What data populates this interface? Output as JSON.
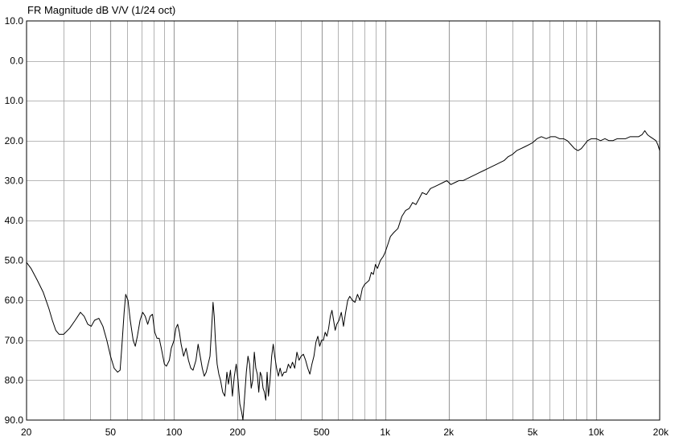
{
  "chart_data": {
    "type": "line",
    "title": "FR Magnitude dB V/V (1/24 oct)",
    "xscale": "log",
    "xlim": [
      20,
      20000
    ],
    "ylim": [
      90,
      -10
    ],
    "y_axis_inverted": true,
    "grid": true,
    "x_ticks": [
      {
        "value": 20,
        "label": "20"
      },
      {
        "value": 50,
        "label": "50"
      },
      {
        "value": 100,
        "label": "100"
      },
      {
        "value": 200,
        "label": "200"
      },
      {
        "value": 500,
        "label": "500"
      },
      {
        "value": 1000,
        "label": "1k"
      },
      {
        "value": 2000,
        "label": "2k"
      },
      {
        "value": 5000,
        "label": "5k"
      },
      {
        "value": 10000,
        "label": "10k"
      },
      {
        "value": 20000,
        "label": "20k"
      }
    ],
    "y_ticks": [
      {
        "value": -10,
        "label": "10.0"
      },
      {
        "value": 0,
        "label": "0.0"
      },
      {
        "value": 10,
        "label": "10.0"
      },
      {
        "value": 20,
        "label": "20.0"
      },
      {
        "value": 30,
        "label": "30.0"
      },
      {
        "value": 40,
        "label": "40.0"
      },
      {
        "value": 50,
        "label": "50.0"
      },
      {
        "value": 60,
        "label": "60.0"
      },
      {
        "value": 70,
        "label": "70.0"
      },
      {
        "value": 80,
        "label": "80.0"
      },
      {
        "value": 90,
        "label": "90.0"
      }
    ],
    "series": [
      {
        "color": "#000000",
        "points": [
          [
            20,
            50.5
          ],
          [
            21,
            52
          ],
          [
            22.5,
            55
          ],
          [
            24,
            58
          ],
          [
            25.5,
            62
          ],
          [
            26.5,
            65
          ],
          [
            27.5,
            67.5
          ],
          [
            28.5,
            68.5
          ],
          [
            30,
            68.5
          ],
          [
            32,
            67
          ],
          [
            34,
            65
          ],
          [
            36,
            63
          ],
          [
            37.5,
            64
          ],
          [
            39,
            66
          ],
          [
            40.5,
            66.5
          ],
          [
            42,
            65
          ],
          [
            44,
            64.5
          ],
          [
            46,
            66.5
          ],
          [
            48,
            70
          ],
          [
            50,
            74
          ],
          [
            52,
            77
          ],
          [
            54,
            78
          ],
          [
            55.5,
            77.5
          ],
          [
            56.5,
            72
          ],
          [
            58,
            63
          ],
          [
            59,
            58.5
          ],
          [
            60.5,
            60
          ],
          [
            62,
            65
          ],
          [
            64,
            70
          ],
          [
            65.5,
            71.5
          ],
          [
            67,
            69
          ],
          [
            69,
            65
          ],
          [
            71,
            63
          ],
          [
            73,
            64
          ],
          [
            75,
            66
          ],
          [
            77,
            64
          ],
          [
            79,
            63.5
          ],
          [
            81,
            68
          ],
          [
            83,
            69.5
          ],
          [
            85,
            69.5
          ],
          [
            87,
            72
          ],
          [
            90,
            76
          ],
          [
            92,
            76.5
          ],
          [
            95,
            75
          ],
          [
            97,
            72
          ],
          [
            100,
            70
          ],
          [
            102,
            67
          ],
          [
            104,
            66
          ],
          [
            106,
            68
          ],
          [
            108,
            71
          ],
          [
            111,
            74
          ],
          [
            114,
            72
          ],
          [
            117,
            75
          ],
          [
            120,
            77
          ],
          [
            123,
            77.5
          ],
          [
            127,
            75
          ],
          [
            130,
            71
          ],
          [
            133,
            74
          ],
          [
            136,
            77
          ],
          [
            139,
            79
          ],
          [
            142,
            78
          ],
          [
            145,
            76
          ],
          [
            148,
            74
          ],
          [
            151,
            66
          ],
          [
            153,
            60.5
          ],
          [
            155,
            64
          ],
          [
            157,
            70
          ],
          [
            160,
            76
          ],
          [
            163,
            78.5
          ],
          [
            166,
            80
          ],
          [
            170,
            83
          ],
          [
            174,
            84
          ],
          [
            178,
            78
          ],
          [
            181,
            81
          ],
          [
            185,
            77.5
          ],
          [
            189,
            84
          ],
          [
            193,
            79
          ],
          [
            197,
            76
          ],
          [
            201,
            80
          ],
          [
            205,
            86
          ],
          [
            209,
            88
          ],
          [
            212,
            90
          ],
          [
            216,
            84
          ],
          [
            220,
            78
          ],
          [
            224,
            74
          ],
          [
            228,
            76
          ],
          [
            232,
            82
          ],
          [
            236,
            80
          ],
          [
            240,
            73
          ],
          [
            244,
            77
          ],
          [
            248,
            78.5
          ],
          [
            252,
            83
          ],
          [
            256,
            78
          ],
          [
            260,
            79
          ],
          [
            264,
            82
          ],
          [
            268,
            83
          ],
          [
            272,
            85
          ],
          [
            276,
            78
          ],
          [
            280,
            84
          ],
          [
            285,
            80
          ],
          [
            290,
            74
          ],
          [
            295,
            71
          ],
          [
            300,
            74
          ],
          [
            306,
            77
          ],
          [
            312,
            79
          ],
          [
            318,
            77
          ],
          [
            325,
            79
          ],
          [
            332,
            78
          ],
          [
            340,
            78
          ],
          [
            348,
            76
          ],
          [
            356,
            77
          ],
          [
            364,
            75.5
          ],
          [
            373,
            77
          ],
          [
            382,
            73
          ],
          [
            391,
            75
          ],
          [
            400,
            74
          ],
          [
            410,
            73.5
          ],
          [
            420,
            75
          ],
          [
            430,
            77
          ],
          [
            440,
            78.5
          ],
          [
            450,
            76
          ],
          [
            460,
            74
          ],
          [
            470,
            70.5
          ],
          [
            480,
            69
          ],
          [
            490,
            71.5
          ],
          [
            500,
            70
          ],
          [
            510,
            70
          ],
          [
            520,
            68
          ],
          [
            530,
            69
          ],
          [
            540,
            67
          ],
          [
            550,
            64
          ],
          [
            560,
            62.5
          ],
          [
            570,
            65
          ],
          [
            580,
            67.5
          ],
          [
            590,
            66
          ],
          [
            605,
            65
          ],
          [
            620,
            63
          ],
          [
            635,
            66.5
          ],
          [
            650,
            63
          ],
          [
            665,
            60
          ],
          [
            680,
            59
          ],
          [
            700,
            60
          ],
          [
            720,
            60.5
          ],
          [
            740,
            58.5
          ],
          [
            760,
            60
          ],
          [
            780,
            57
          ],
          [
            800,
            56
          ],
          [
            820,
            55.5
          ],
          [
            840,
            55
          ],
          [
            860,
            53
          ],
          [
            880,
            53.5
          ],
          [
            900,
            51
          ],
          [
            920,
            52
          ],
          [
            950,
            50
          ],
          [
            980,
            49
          ],
          [
            1000,
            48
          ],
          [
            1030,
            46
          ],
          [
            1060,
            44
          ],
          [
            1100,
            43
          ],
          [
            1150,
            42
          ],
          [
            1200,
            39
          ],
          [
            1250,
            37.5
          ],
          [
            1300,
            37
          ],
          [
            1350,
            35.5
          ],
          [
            1400,
            36
          ],
          [
            1450,
            34.5
          ],
          [
            1500,
            33
          ],
          [
            1570,
            33.5
          ],
          [
            1640,
            32
          ],
          [
            1720,
            31.5
          ],
          [
            1800,
            31
          ],
          [
            1880,
            30.5
          ],
          [
            1960,
            30
          ],
          [
            2050,
            31
          ],
          [
            2140,
            30.5
          ],
          [
            2240,
            30
          ],
          [
            2340,
            30
          ],
          [
            2450,
            29.5
          ],
          [
            2560,
            29
          ],
          [
            2680,
            28.5
          ],
          [
            2800,
            28
          ],
          [
            2930,
            27.5
          ],
          [
            3060,
            27
          ],
          [
            3200,
            26.5
          ],
          [
            3350,
            26
          ],
          [
            3500,
            25.5
          ],
          [
            3660,
            25
          ],
          [
            3830,
            24
          ],
          [
            4000,
            23.5
          ],
          [
            4200,
            22.5
          ],
          [
            4400,
            22
          ],
          [
            4600,
            21.5
          ],
          [
            4800,
            21
          ],
          [
            5000,
            20.5
          ],
          [
            5250,
            19.5
          ],
          [
            5500,
            19
          ],
          [
            5800,
            19.5
          ],
          [
            6100,
            19
          ],
          [
            6400,
            19
          ],
          [
            6700,
            19.5
          ],
          [
            7000,
            19.5
          ],
          [
            7300,
            20
          ],
          [
            7600,
            21
          ],
          [
            7900,
            22
          ],
          [
            8200,
            22.5
          ],
          [
            8500,
            22
          ],
          [
            8800,
            21
          ],
          [
            9100,
            20
          ],
          [
            9500,
            19.5
          ],
          [
            10000,
            19.5
          ],
          [
            10500,
            20
          ],
          [
            11000,
            19.5
          ],
          [
            11500,
            20
          ],
          [
            12000,
            20
          ],
          [
            12600,
            19.5
          ],
          [
            13200,
            19.5
          ],
          [
            13800,
            19.5
          ],
          [
            14500,
            19
          ],
          [
            15200,
            19
          ],
          [
            15900,
            19
          ],
          [
            16500,
            18.5
          ],
          [
            17000,
            17.5
          ],
          [
            17500,
            18.5
          ],
          [
            18000,
            19
          ],
          [
            18600,
            19.5
          ],
          [
            19200,
            20
          ],
          [
            19600,
            21
          ],
          [
            20000,
            22.5
          ]
        ]
      }
    ]
  }
}
